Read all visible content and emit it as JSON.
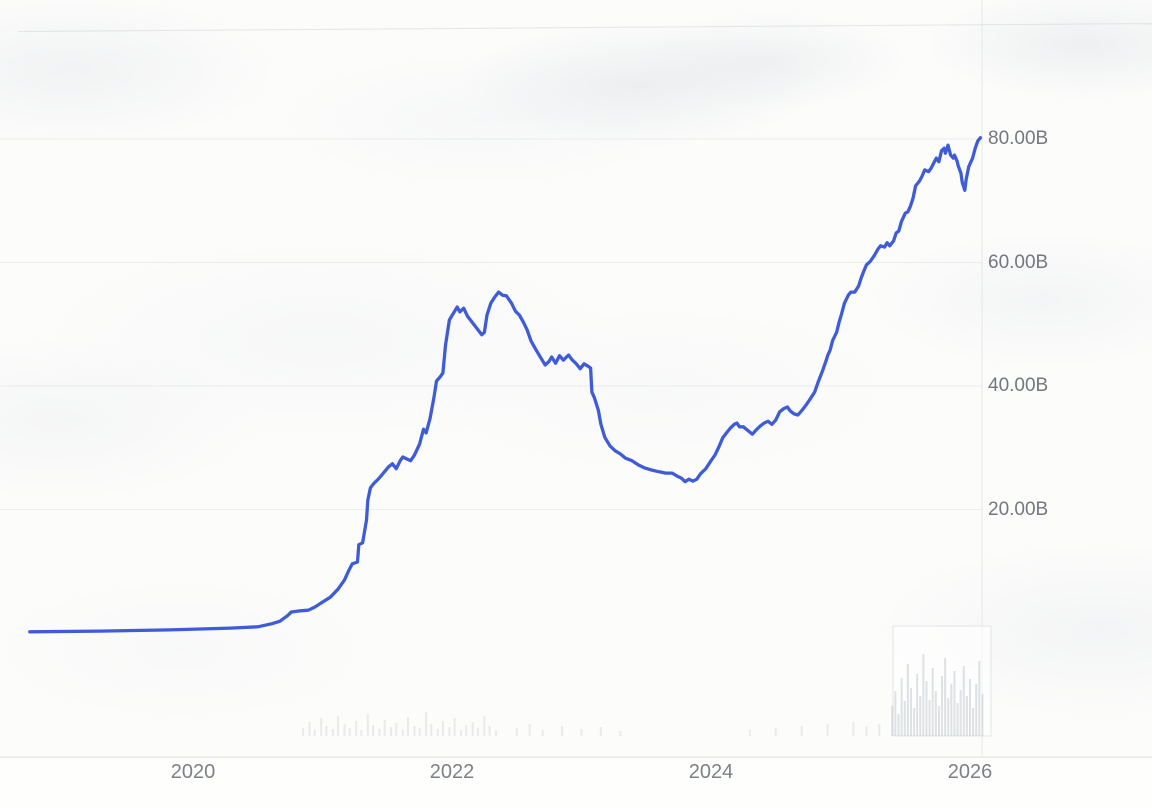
{
  "colors": {
    "line": "#3553d6",
    "y_tick_text": "#74777f",
    "x_tick_text": "#7d8088",
    "grid": "rgba(198,202,207,0.30)",
    "axis_border": "rgba(210,213,217,0.50)",
    "volume_bar": "rgba(166,174,183,0.22)",
    "volume_bar_cluster": "rgba(162,170,179,0.34)",
    "background": "#fcfcfb"
  },
  "chart_data": {
    "type": "line",
    "title": "",
    "xlabel": "",
    "ylabel": "",
    "x_unit": "year",
    "y_unit": "billions",
    "xlim": [
      2018.7,
      2026.15
    ],
    "ylim": [
      0,
      85
    ],
    "grid": "faint-horizontal",
    "y_ticks": [
      {
        "label": "80.00B",
        "value": 80
      },
      {
        "label": "60.00B",
        "value": 60
      },
      {
        "label": "40.00B",
        "value": 40
      },
      {
        "label": "20.00B",
        "value": 20
      }
    ],
    "x_ticks": [
      {
        "label": "2020",
        "year": 2020
      },
      {
        "label": "2022",
        "year": 2022
      },
      {
        "label": "2024",
        "year": 2024
      },
      {
        "label": "2026",
        "year": 2026
      }
    ],
    "series": [
      {
        "name": "market-cap-line",
        "points": [
          [
            2018.74,
            0.2
          ],
          [
            2019.28,
            0.3
          ],
          [
            2019.82,
            0.5
          ],
          [
            2020.29,
            0.8
          ],
          [
            2020.5,
            1.0
          ],
          [
            2020.61,
            1.5
          ],
          [
            2020.67,
            1.9
          ],
          [
            2020.73,
            2.8
          ],
          [
            2020.76,
            3.4
          ],
          [
            2020.83,
            3.6
          ],
          [
            2020.89,
            3.7
          ],
          [
            2020.94,
            4.2
          ],
          [
            2021.0,
            5.0
          ],
          [
            2021.06,
            5.8
          ],
          [
            2021.12,
            7.1
          ],
          [
            2021.17,
            8.6
          ],
          [
            2021.2,
            10.0
          ],
          [
            2021.23,
            11.2
          ],
          [
            2021.27,
            11.5
          ],
          [
            2021.28,
            14.3
          ],
          [
            2021.31,
            14.6
          ],
          [
            2021.34,
            18.3
          ],
          [
            2021.35,
            21.5
          ],
          [
            2021.37,
            23.5
          ],
          [
            2021.4,
            24.3
          ],
          [
            2021.43,
            24.9
          ],
          [
            2021.47,
            25.9
          ],
          [
            2021.51,
            26.9
          ],
          [
            2021.54,
            27.4
          ],
          [
            2021.57,
            26.6
          ],
          [
            2021.6,
            27.9
          ],
          [
            2021.62,
            28.5
          ],
          [
            2021.65,
            28.2
          ],
          [
            2021.68,
            27.9
          ],
          [
            2021.71,
            28.8
          ],
          [
            2021.75,
            30.6
          ],
          [
            2021.78,
            33.0
          ],
          [
            2021.8,
            32.4
          ],
          [
            2021.83,
            34.7
          ],
          [
            2021.86,
            38.1
          ],
          [
            2021.88,
            40.8
          ],
          [
            2021.91,
            41.5
          ],
          [
            2021.93,
            42.1
          ],
          [
            2021.95,
            46.6
          ],
          [
            2021.98,
            50.7
          ],
          [
            2022.02,
            52.1
          ],
          [
            2022.04,
            52.8
          ],
          [
            2022.06,
            52.0
          ],
          [
            2022.09,
            52.6
          ],
          [
            2022.12,
            51.3
          ],
          [
            2022.16,
            50.2
          ],
          [
            2022.2,
            49.1
          ],
          [
            2022.23,
            48.3
          ],
          [
            2022.25,
            48.7
          ],
          [
            2022.27,
            51.5
          ],
          [
            2022.3,
            53.4
          ],
          [
            2022.33,
            54.4
          ],
          [
            2022.36,
            55.2
          ],
          [
            2022.39,
            54.7
          ],
          [
            2022.42,
            54.6
          ],
          [
            2022.46,
            53.4
          ],
          [
            2022.49,
            52.1
          ],
          [
            2022.52,
            51.5
          ],
          [
            2022.55,
            50.4
          ],
          [
            2022.58,
            49.1
          ],
          [
            2022.61,
            47.3
          ],
          [
            2022.65,
            45.8
          ],
          [
            2022.69,
            44.4
          ],
          [
            2022.72,
            43.4
          ],
          [
            2022.75,
            44.0
          ],
          [
            2022.77,
            44.7
          ],
          [
            2022.8,
            43.7
          ],
          [
            2022.83,
            44.9
          ],
          [
            2022.86,
            44.2
          ],
          [
            2022.9,
            45.0
          ],
          [
            2022.93,
            44.2
          ],
          [
            2022.96,
            43.6
          ],
          [
            2022.99,
            42.8
          ],
          [
            2023.02,
            43.6
          ],
          [
            2023.05,
            43.2
          ],
          [
            2023.07,
            42.9
          ],
          [
            2023.08,
            39.0
          ],
          [
            2023.1,
            38.1
          ],
          [
            2023.13,
            36.1
          ],
          [
            2023.15,
            33.8
          ],
          [
            2023.18,
            31.7
          ],
          [
            2023.22,
            30.3
          ],
          [
            2023.26,
            29.5
          ],
          [
            2023.3,
            29.0
          ],
          [
            2023.34,
            28.3
          ],
          [
            2023.39,
            27.9
          ],
          [
            2023.44,
            27.2
          ],
          [
            2023.49,
            26.7
          ],
          [
            2023.54,
            26.4
          ],
          [
            2023.6,
            26.1
          ],
          [
            2023.65,
            25.9
          ],
          [
            2023.7,
            25.9
          ],
          [
            2023.74,
            25.4
          ],
          [
            2023.77,
            25.1
          ],
          [
            2023.8,
            24.5
          ],
          [
            2023.83,
            24.9
          ],
          [
            2023.86,
            24.6
          ],
          [
            2023.89,
            24.9
          ],
          [
            2023.92,
            25.8
          ],
          [
            2023.96,
            26.6
          ],
          [
            2024.0,
            27.9
          ],
          [
            2024.03,
            28.8
          ],
          [
            2024.06,
            30.1
          ],
          [
            2024.09,
            31.6
          ],
          [
            2024.12,
            32.4
          ],
          [
            2024.15,
            33.2
          ],
          [
            2024.18,
            33.8
          ],
          [
            2024.2,
            34.0
          ],
          [
            2024.22,
            33.4
          ],
          [
            2024.25,
            33.4
          ],
          [
            2024.29,
            32.7
          ],
          [
            2024.32,
            32.2
          ],
          [
            2024.35,
            32.9
          ],
          [
            2024.38,
            33.5
          ],
          [
            2024.41,
            34.0
          ],
          [
            2024.44,
            34.3
          ],
          [
            2024.47,
            33.8
          ],
          [
            2024.5,
            34.5
          ],
          [
            2024.53,
            35.8
          ],
          [
            2024.56,
            36.3
          ],
          [
            2024.59,
            36.6
          ],
          [
            2024.61,
            36.0
          ],
          [
            2024.64,
            35.5
          ],
          [
            2024.67,
            35.3
          ],
          [
            2024.7,
            36.0
          ],
          [
            2024.73,
            36.8
          ],
          [
            2024.76,
            37.7
          ],
          [
            2024.8,
            39.0
          ],
          [
            2024.83,
            40.8
          ],
          [
            2024.86,
            42.4
          ],
          [
            2024.89,
            44.2
          ],
          [
            2024.9,
            44.9
          ],
          [
            2024.92,
            45.8
          ],
          [
            2024.94,
            47.4
          ],
          [
            2024.97,
            48.7
          ],
          [
            2024.99,
            50.4
          ],
          [
            2025.01,
            51.8
          ],
          [
            2025.03,
            53.4
          ],
          [
            2025.06,
            54.7
          ],
          [
            2025.08,
            55.2
          ],
          [
            2025.11,
            55.2
          ],
          [
            2025.14,
            56.2
          ],
          [
            2025.16,
            57.5
          ],
          [
            2025.18,
            58.6
          ],
          [
            2025.2,
            59.6
          ],
          [
            2025.23,
            60.2
          ],
          [
            2025.26,
            61.1
          ],
          [
            2025.29,
            62.2
          ],
          [
            2025.31,
            62.7
          ],
          [
            2025.34,
            62.5
          ],
          [
            2025.36,
            63.2
          ],
          [
            2025.38,
            62.7
          ],
          [
            2025.41,
            63.5
          ],
          [
            2025.43,
            64.8
          ],
          [
            2025.45,
            65.1
          ],
          [
            2025.47,
            66.6
          ],
          [
            2025.5,
            68.0
          ],
          [
            2025.52,
            68.2
          ],
          [
            2025.54,
            69.1
          ],
          [
            2025.56,
            70.4
          ],
          [
            2025.58,
            72.4
          ],
          [
            2025.61,
            73.2
          ],
          [
            2025.63,
            74.0
          ],
          [
            2025.65,
            75.0
          ],
          [
            2025.68,
            74.7
          ],
          [
            2025.7,
            75.3
          ],
          [
            2025.72,
            76.1
          ],
          [
            2025.74,
            76.9
          ],
          [
            2025.76,
            76.3
          ],
          [
            2025.78,
            78.1
          ],
          [
            2025.8,
            78.5
          ],
          [
            2025.81,
            77.7
          ],
          [
            2025.83,
            79.0
          ],
          [
            2025.85,
            77.4
          ],
          [
            2025.87,
            76.9
          ],
          [
            2025.88,
            77.4
          ],
          [
            2025.9,
            76.4
          ],
          [
            2025.91,
            75.6
          ],
          [
            2025.93,
            74.5
          ],
          [
            2025.94,
            73.0
          ],
          [
            2025.96,
            71.7
          ],
          [
            2025.97,
            73.4
          ],
          [
            2025.99,
            75.5
          ],
          [
            2026.02,
            76.9
          ],
          [
            2026.04,
            78.5
          ],
          [
            2026.06,
            79.7
          ],
          [
            2026.08,
            80.2
          ]
        ]
      }
    ],
    "volume_mid_bars": [
      [
        2020.85,
        8
      ],
      [
        2020.9,
        14
      ],
      [
        2020.94,
        6
      ],
      [
        2020.99,
        18
      ],
      [
        2021.03,
        10
      ],
      [
        2021.08,
        7
      ],
      [
        2021.12,
        20
      ],
      [
        2021.17,
        12
      ],
      [
        2021.21,
        8
      ],
      [
        2021.26,
        15
      ],
      [
        2021.3,
        6
      ],
      [
        2021.35,
        22
      ],
      [
        2021.39,
        11
      ],
      [
        2021.44,
        7
      ],
      [
        2021.48,
        16
      ],
      [
        2021.53,
        9
      ],
      [
        2021.57,
        13
      ],
      [
        2021.62,
        6
      ],
      [
        2021.66,
        19
      ],
      [
        2021.71,
        10
      ],
      [
        2021.75,
        8
      ],
      [
        2021.8,
        24
      ],
      [
        2021.84,
        12
      ],
      [
        2021.89,
        7
      ],
      [
        2021.93,
        15
      ],
      [
        2021.98,
        9
      ],
      [
        2022.02,
        18
      ],
      [
        2022.07,
        6
      ],
      [
        2022.11,
        11
      ],
      [
        2022.16,
        14
      ],
      [
        2022.2,
        8
      ],
      [
        2022.25,
        20
      ],
      [
        2022.29,
        10
      ],
      [
        2022.34,
        6
      ],
      [
        2022.5,
        8
      ],
      [
        2022.6,
        12
      ],
      [
        2022.7,
        6
      ],
      [
        2022.85,
        10
      ],
      [
        2023.0,
        7
      ],
      [
        2023.15,
        9
      ],
      [
        2023.3,
        5
      ],
      [
        2024.3,
        6
      ],
      [
        2024.5,
        8
      ],
      [
        2024.7,
        10
      ],
      [
        2024.9,
        12
      ],
      [
        2025.1,
        14
      ],
      [
        2025.2,
        10
      ],
      [
        2025.3,
        12
      ]
    ],
    "volume_cluster_bars": [
      [
        2025.4,
        30
      ],
      [
        2025.424,
        45
      ],
      [
        2025.448,
        22
      ],
      [
        2025.472,
        58
      ],
      [
        2025.496,
        35
      ],
      [
        2025.52,
        72
      ],
      [
        2025.544,
        48
      ],
      [
        2025.568,
        28
      ],
      [
        2025.592,
        62
      ],
      [
        2025.616,
        40
      ],
      [
        2025.64,
        82
      ],
      [
        2025.664,
        55
      ],
      [
        2025.688,
        36
      ],
      [
        2025.712,
        68
      ],
      [
        2025.736,
        45
      ],
      [
        2025.76,
        30
      ],
      [
        2025.784,
        60
      ],
      [
        2025.808,
        78
      ],
      [
        2025.832,
        38
      ],
      [
        2025.856,
        52
      ],
      [
        2025.88,
        65
      ],
      [
        2025.904,
        33
      ],
      [
        2025.928,
        46
      ],
      [
        2025.952,
        70
      ],
      [
        2025.976,
        40
      ],
      [
        2026.0,
        57
      ],
      [
        2026.024,
        28
      ],
      [
        2026.048,
        52
      ],
      [
        2026.072,
        75
      ],
      [
        2026.096,
        42
      ]
    ]
  }
}
